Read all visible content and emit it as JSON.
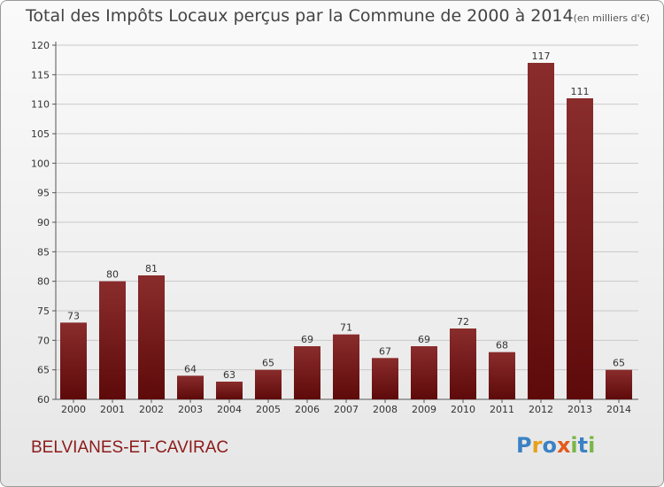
{
  "title": {
    "main": "Total des Impôts Locaux perçus par la Commune de 2000 à 2014",
    "unit": "(en milliers d'€)"
  },
  "commune_name": "BELVIANES-ET-CAVIRAC",
  "logo": {
    "text": "Proxiti",
    "letters": [
      {
        "ch": "P",
        "color": "#3b82c4"
      },
      {
        "ch": "r",
        "color": "#e8a020"
      },
      {
        "ch": "o",
        "color": "#3b82c4"
      },
      {
        "ch": "x",
        "color": "#e25a1c"
      },
      {
        "ch": "i",
        "color": "#7ab648"
      },
      {
        "ch": "t",
        "color": "#3b82c4"
      },
      {
        "ch": "i",
        "color": "#7ab648"
      }
    ]
  },
  "colors": {
    "bar_dark": "#5e0a0a",
    "bar_light": "#8a2c2c",
    "grid": "#c8c8c8"
  },
  "chart_data": {
    "type": "bar",
    "title": "Total des Impôts Locaux perçus par la Commune de 2000 à 2014",
    "xlabel": "",
    "ylabel": "",
    "ylim": [
      60,
      120
    ],
    "yticks": [
      60,
      65,
      70,
      75,
      80,
      85,
      90,
      95,
      100,
      105,
      110,
      115,
      120
    ],
    "categories": [
      "2000",
      "2001",
      "2002",
      "2003",
      "2004",
      "2005",
      "2006",
      "2007",
      "2008",
      "2009",
      "2010",
      "2011",
      "2012",
      "2013",
      "2014"
    ],
    "values": [
      73,
      80,
      81,
      64,
      63,
      65,
      69,
      71,
      67,
      69,
      72,
      68,
      117,
      111,
      65
    ]
  }
}
